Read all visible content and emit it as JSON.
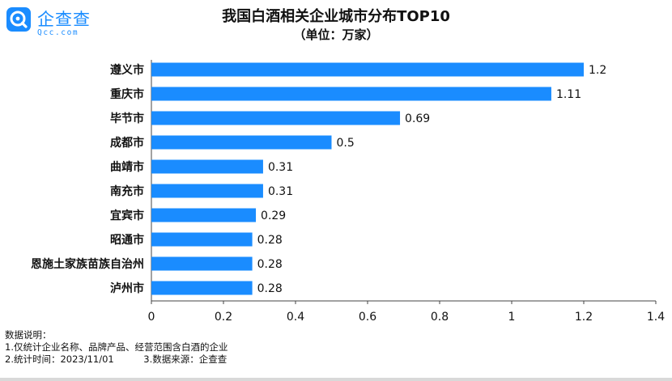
{
  "brand": {
    "name": "企查查",
    "domain": "Qcc.com",
    "icon": "qcc-logo-icon",
    "color": "#1a8cff"
  },
  "chart_data": {
    "type": "bar",
    "orientation": "horizontal",
    "title": "我国白酒相关企业城市分布TOP10",
    "subtitle": "（单位：万家）",
    "categories": [
      "遵义市",
      "重庆市",
      "毕节市",
      "成都市",
      "曲靖市",
      "南充市",
      "宜宾市",
      "昭通市",
      "恩施土家族苗族自治州",
      "泸州市"
    ],
    "values": [
      1.2,
      1.11,
      0.69,
      0.5,
      0.31,
      0.31,
      0.29,
      0.28,
      0.28,
      0.28
    ],
    "value_labels": [
      "1.2",
      "1.11",
      "0.69",
      "0.5",
      "0.31",
      "0.31",
      "0.29",
      "0.28",
      "0.28",
      "0.28"
    ],
    "xlim": [
      0,
      1.4
    ],
    "xticks": [
      0,
      0.2,
      0.4,
      0.6,
      0.8,
      1,
      1.2,
      1.4
    ],
    "xtick_labels": [
      "0",
      "0.2",
      "0.4",
      "0.6",
      "0.8",
      "1",
      "1.2",
      "1.4"
    ],
    "bar_color": "#1a8cff",
    "grid": false,
    "legend": "none"
  },
  "notes": {
    "heading": "数据说明：",
    "line1": "1.仅统计企业名称、品牌产品、经营范围含白酒的企业",
    "line2": "2.统计时间：2023/11/01          3.数据来源：企查查"
  }
}
